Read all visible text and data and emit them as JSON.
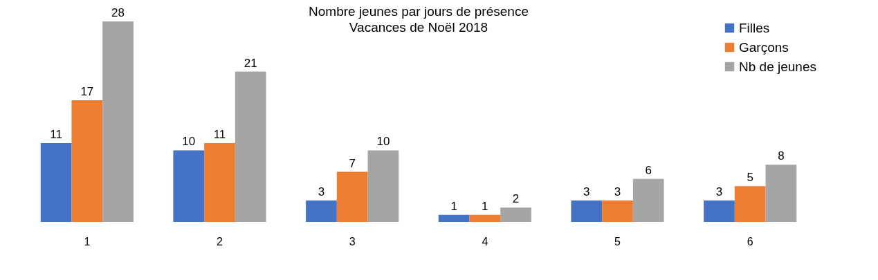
{
  "chart_data": {
    "type": "bar",
    "title": "Nombre jeunes par jours de présence",
    "subtitle": "Vacances de Noël 2018",
    "categories": [
      "1",
      "2",
      "3",
      "4",
      "5",
      "6"
    ],
    "series": [
      {
        "name": "Filles",
        "color": "#4472c4",
        "values": [
          11,
          10,
          3,
          1,
          3,
          3
        ]
      },
      {
        "name": "Garçons",
        "color": "#ed7d31",
        "values": [
          17,
          11,
          7,
          1,
          3,
          5
        ]
      },
      {
        "name": "Nb de jeunes",
        "color": "#a5a5a5",
        "values": [
          28,
          21,
          10,
          2,
          6,
          8
        ]
      }
    ],
    "data_labels": true,
    "grid": false,
    "legend": "top right"
  }
}
